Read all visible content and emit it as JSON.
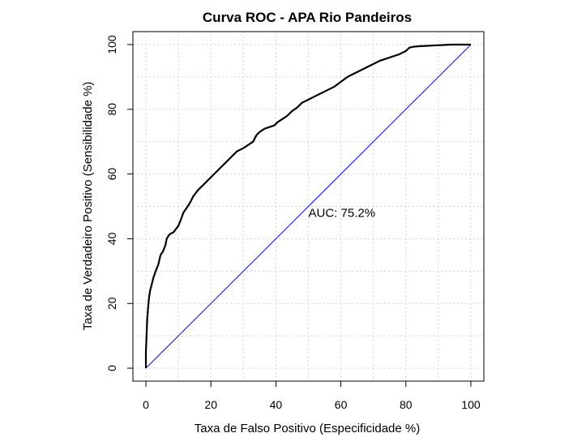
{
  "chart_data": {
    "type": "line",
    "title": "Curva ROC - APA Rio Pandeiros",
    "xlabel": "Taxa de Falso Positivo (Especificidade %)",
    "ylabel": "Taxa de Verdadeiro Positivo (Sensibilidade %)",
    "xlim": [
      -4,
      104
    ],
    "ylim": [
      -4,
      104
    ],
    "xticks": [
      "0",
      "20",
      "40",
      "60",
      "80",
      "100"
    ],
    "yticks": [
      "0",
      "20",
      "40",
      "60",
      "80",
      "100"
    ],
    "tick_values": [
      0,
      20,
      40,
      60,
      80,
      100
    ],
    "grid": true,
    "annotation": {
      "text": "AUC: 75.2%",
      "x": 50,
      "y": 48
    },
    "reference_line": {
      "color": "#0000ff",
      "from": [
        0,
        0
      ],
      "to": [
        100,
        100
      ]
    },
    "series": [
      {
        "color": "#000000",
        "x": [
          0,
          0,
          0.2,
          0.4,
          0.7,
          1,
          1.3,
          1.8,
          2.3,
          3,
          3.8,
          4.5,
          5.2,
          6,
          6.4,
          7,
          7.5,
          8.5,
          10,
          10.8,
          11.5,
          12.5,
          13.5,
          14.5,
          16,
          17.5,
          19,
          20,
          21,
          22.5,
          24,
          25.5,
          27,
          28,
          29,
          30,
          31.5,
          33,
          34,
          35,
          36.5,
          38,
          39.5,
          40.5,
          42,
          43.5,
          45,
          46.5,
          48,
          50,
          52,
          54,
          56,
          58,
          60,
          62,
          64,
          66,
          68,
          70,
          72,
          75,
          78,
          80,
          81,
          82,
          84,
          86,
          88,
          90,
          92,
          94,
          96,
          100
        ],
        "y": [
          0,
          5,
          10,
          15,
          19,
          22,
          24,
          26,
          28,
          30,
          32,
          35,
          36,
          38,
          40,
          41,
          41.5,
          42,
          44,
          46,
          48,
          49.5,
          51,
          53,
          55,
          56.5,
          58,
          59,
          60,
          61.5,
          63,
          64.5,
          66,
          67,
          67.5,
          68,
          69,
          70,
          72,
          73,
          74,
          74.5,
          75,
          76,
          77,
          78,
          79.5,
          80.5,
          82,
          83,
          84,
          85,
          86,
          87,
          88.5,
          90,
          91,
          92,
          93,
          94,
          95,
          96,
          97,
          98,
          99,
          99.3,
          99.5,
          99.6,
          99.7,
          99.8,
          99.9,
          100,
          100,
          100
        ]
      }
    ]
  }
}
